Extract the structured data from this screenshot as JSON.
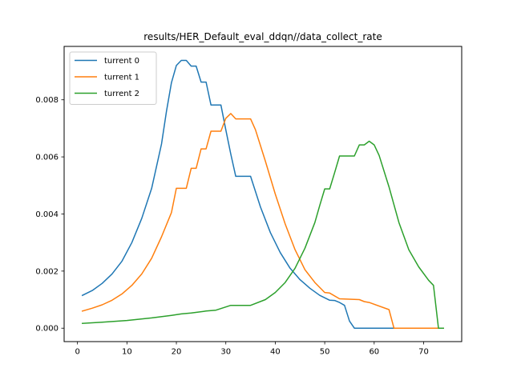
{
  "chart_data": {
    "type": "line",
    "title": "results/HER_Default_eval_ddqn//data_collect_rate",
    "xlabel": "",
    "ylabel": "",
    "xlim": [
      -2.7,
      77.7
    ],
    "ylim": [
      -0.00047,
      0.00987
    ],
    "x_ticks": [
      0,
      10,
      20,
      30,
      40,
      50,
      60,
      70
    ],
    "y_ticks": [
      0.0,
      0.002,
      0.004,
      0.006,
      0.008
    ],
    "y_tick_labels": [
      "0.000",
      "0.002",
      "0.004",
      "0.006",
      "0.008"
    ],
    "grid": false,
    "legend_position": "upper-left",
    "series": [
      {
        "name": "turrent 0",
        "color": "#1f77b4",
        "points": [
          [
            1,
            0.00115
          ],
          [
            3,
            0.00132
          ],
          [
            5,
            0.00157
          ],
          [
            7,
            0.0019
          ],
          [
            9,
            0.00235
          ],
          [
            11,
            0.003
          ],
          [
            13,
            0.00385
          ],
          [
            15,
            0.0049
          ],
          [
            17,
            0.00645
          ],
          [
            18,
            0.0076
          ],
          [
            19,
            0.0086
          ],
          [
            20,
            0.0092
          ],
          [
            21,
            0.00938
          ],
          [
            22,
            0.00938
          ],
          [
            23,
            0.00918
          ],
          [
            24,
            0.00918
          ],
          [
            25,
            0.00862
          ],
          [
            26,
            0.00862
          ],
          [
            27,
            0.00782
          ],
          [
            29,
            0.00782
          ],
          [
            30,
            0.00695
          ],
          [
            31,
            0.0061
          ],
          [
            32,
            0.00532
          ],
          [
            35,
            0.00532
          ],
          [
            37,
            0.00425
          ],
          [
            39,
            0.00335
          ],
          [
            41,
            0.00265
          ],
          [
            43,
            0.0021
          ],
          [
            45,
            0.0017
          ],
          [
            47,
            0.0014
          ],
          [
            49,
            0.00115
          ],
          [
            51,
            0.00098
          ],
          [
            52,
            0.00097
          ],
          [
            53,
            0.0009
          ],
          [
            54,
            0.0008
          ],
          [
            55,
            0.00025
          ],
          [
            56,
            0.0
          ],
          [
            74,
            0.0
          ]
        ]
      },
      {
        "name": "turrent 1",
        "color": "#ff7f0e",
        "points": [
          [
            1,
            0.0006
          ],
          [
            3,
            0.0007
          ],
          [
            5,
            0.00082
          ],
          [
            7,
            0.00098
          ],
          [
            9,
            0.0012
          ],
          [
            11,
            0.0015
          ],
          [
            13,
            0.0019
          ],
          [
            15,
            0.00245
          ],
          [
            17,
            0.0032
          ],
          [
            19,
            0.00405
          ],
          [
            20,
            0.0049
          ],
          [
            22,
            0.0049
          ],
          [
            23,
            0.0056
          ],
          [
            24,
            0.0056
          ],
          [
            25,
            0.00628
          ],
          [
            26,
            0.00628
          ],
          [
            27,
            0.0069
          ],
          [
            29,
            0.0069
          ],
          [
            30,
            0.00735
          ],
          [
            31,
            0.00752
          ],
          [
            32,
            0.00733
          ],
          [
            35,
            0.00733
          ],
          [
            36,
            0.00695
          ],
          [
            38,
            0.00585
          ],
          [
            40,
            0.0047
          ],
          [
            42,
            0.00365
          ],
          [
            44,
            0.00275
          ],
          [
            46,
            0.00205
          ],
          [
            48,
            0.0016
          ],
          [
            50,
            0.00125
          ],
          [
            51,
            0.00123
          ],
          [
            53,
            0.00103
          ],
          [
            57,
            0.001
          ],
          [
            58,
            0.00093
          ],
          [
            59,
            0.0009
          ],
          [
            63,
            0.00065
          ],
          [
            64,
            0.0
          ],
          [
            74,
            0.0
          ]
        ]
      },
      {
        "name": "turrent 2",
        "color": "#2ca02c",
        "points": [
          [
            1,
            0.00017
          ],
          [
            5,
            0.00021
          ],
          [
            10,
            0.00027
          ],
          [
            15,
            0.00036
          ],
          [
            19,
            0.00045
          ],
          [
            21,
            0.0005
          ],
          [
            23,
            0.00053
          ],
          [
            26,
            0.0006
          ],
          [
            28,
            0.00063
          ],
          [
            31,
            0.0008
          ],
          [
            35,
            0.0008
          ],
          [
            38,
            0.001
          ],
          [
            40,
            0.00125
          ],
          [
            42,
            0.0016
          ],
          [
            44,
            0.0021
          ],
          [
            46,
            0.0028
          ],
          [
            48,
            0.0037
          ],
          [
            49,
            0.0043
          ],
          [
            50,
            0.00488
          ],
          [
            51,
            0.00488
          ],
          [
            52,
            0.00545
          ],
          [
            53,
            0.00603
          ],
          [
            56,
            0.00603
          ],
          [
            57,
            0.00642
          ],
          [
            58,
            0.00642
          ],
          [
            59,
            0.00655
          ],
          [
            60,
            0.00642
          ],
          [
            61,
            0.00605
          ],
          [
            63,
            0.00495
          ],
          [
            65,
            0.0037
          ],
          [
            67,
            0.00275
          ],
          [
            69,
            0.00215
          ],
          [
            71,
            0.00168
          ],
          [
            72,
            0.0015
          ],
          [
            73,
            0.0
          ],
          [
            74,
            0.0
          ]
        ]
      }
    ]
  }
}
